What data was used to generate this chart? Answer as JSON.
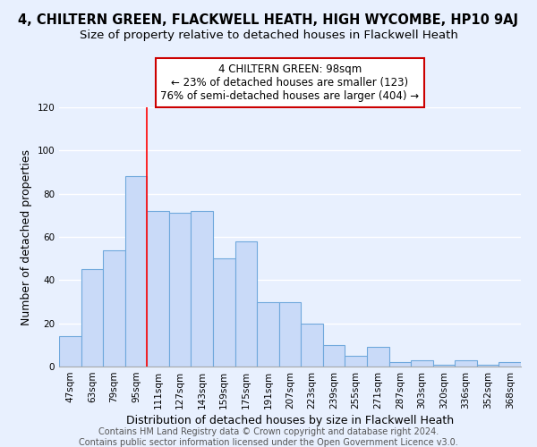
{
  "title": "4, CHILTERN GREEN, FLACKWELL HEATH, HIGH WYCOMBE, HP10 9AJ",
  "subtitle": "Size of property relative to detached houses in Flackwell Heath",
  "xlabel": "Distribution of detached houses by size in Flackwell Heath",
  "ylabel": "Number of detached properties",
  "bin_labels": [
    "47sqm",
    "63sqm",
    "79sqm",
    "95sqm",
    "111sqm",
    "127sqm",
    "143sqm",
    "159sqm",
    "175sqm",
    "191sqm",
    "207sqm",
    "223sqm",
    "239sqm",
    "255sqm",
    "271sqm",
    "287sqm",
    "303sqm",
    "320sqm",
    "336sqm",
    "352sqm",
    "368sqm"
  ],
  "bar_heights": [
    14,
    45,
    54,
    88,
    72,
    71,
    72,
    50,
    58,
    30,
    30,
    20,
    10,
    5,
    9,
    2,
    3,
    1,
    3,
    1,
    2
  ],
  "bar_color": "#c9daf8",
  "bar_edge_color": "#6fa8dc",
  "vline_x": 3.5,
  "annotation_lines": [
    "4 CHILTERN GREEN: 98sqm",
    "← 23% of detached houses are smaller (123)",
    "76% of semi-detached houses are larger (404) →"
  ],
  "annotation_box_color": "#ffffff",
  "annotation_box_edge": "#cc0000",
  "ylim": [
    0,
    120
  ],
  "yticks": [
    0,
    20,
    40,
    60,
    80,
    100,
    120
  ],
  "footer_line1": "Contains HM Land Registry data © Crown copyright and database right 2024.",
  "footer_line2": "Contains public sector information licensed under the Open Government Licence v3.0.",
  "bg_color": "#e8f0fe",
  "grid_color": "#ffffff",
  "title_fontsize": 10.5,
  "subtitle_fontsize": 9.5,
  "axis_label_fontsize": 9,
  "tick_fontsize": 7.5,
  "footer_fontsize": 7
}
